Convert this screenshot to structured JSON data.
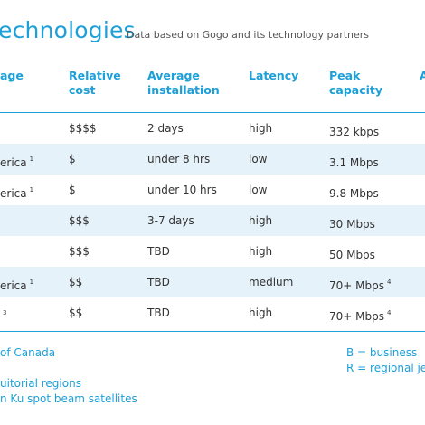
{
  "title": "echnologies",
  "subtitle": "Data based on Gogo and its technology partners",
  "headers": [
    {
      "l1": "age",
      "l2": ""
    },
    {
      "l1": "Relative",
      "l2": "cost"
    },
    {
      "l1": "Average",
      "l2": "installation"
    },
    {
      "l1": "Latency",
      "l2": ""
    },
    {
      "l1": "Peak",
      "l2": "capacity"
    },
    {
      "l1": "A",
      "l2": ""
    }
  ],
  "rows": [
    {
      "coverage": "",
      "coverage_sup": "",
      "cost": "$$$$",
      "install": "2 days",
      "latency": "high",
      "capacity": "332 kbps",
      "capacity_sup": ""
    },
    {
      "coverage": "erica",
      "coverage_sup": "1",
      "cost": "$",
      "install": "under 8 hrs",
      "latency": "low",
      "capacity": "3.1 Mbps",
      "capacity_sup": ""
    },
    {
      "coverage": "erica",
      "coverage_sup": "1",
      "cost": "$",
      "install": "under 10 hrs",
      "latency": "low",
      "capacity": "9.8 Mbps",
      "capacity_sup": ""
    },
    {
      "coverage": "",
      "coverage_sup": "",
      "cost": "$$$",
      "install": "3-7 days",
      "latency": "high",
      "capacity": "30 Mbps",
      "capacity_sup": ""
    },
    {
      "coverage": "",
      "coverage_sup": "",
      "cost": "$$$",
      "install": "TBD",
      "latency": "high",
      "capacity": "50 Mbps",
      "capacity_sup": ""
    },
    {
      "coverage": "erica",
      "coverage_sup": "1",
      "cost": "$$",
      "install": "TBD",
      "latency": "medium",
      "capacity": "70+ Mbps",
      "capacity_sup": "4"
    },
    {
      "coverage": "",
      "coverage_sup": "3",
      "cost": "$$",
      "install": "TBD",
      "latency": "high",
      "capacity": "70+ Mbps",
      "capacity_sup": "4"
    }
  ],
  "footnotes": {
    "left": [
      "of Canada",
      "uitorial regions",
      "n Ku spot beam satellites"
    ],
    "right": [
      "B = business",
      "R = regional jet"
    ]
  },
  "colors": {
    "accent": "#1d9fd8",
    "row_shade": "#e6f2f9",
    "text": "#333333"
  }
}
